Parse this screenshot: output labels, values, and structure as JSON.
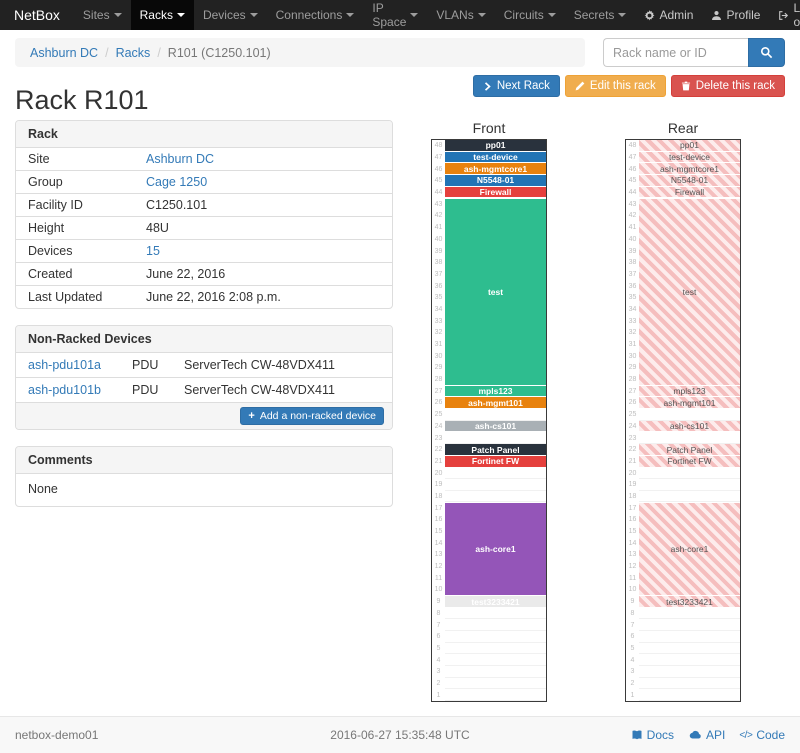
{
  "navbar": {
    "brand": "NetBox",
    "items": [
      {
        "label": "Sites",
        "active": false
      },
      {
        "label": "Racks",
        "active": true
      },
      {
        "label": "Devices",
        "active": false
      },
      {
        "label": "Connections",
        "active": false
      },
      {
        "label": "IP Space",
        "active": false
      },
      {
        "label": "VLANs",
        "active": false
      },
      {
        "label": "Circuits",
        "active": false
      },
      {
        "label": "Secrets",
        "active": false
      }
    ],
    "right": [
      {
        "label": "Admin",
        "icon": "gear"
      },
      {
        "label": "Profile",
        "icon": "user"
      },
      {
        "label": "Log out",
        "icon": "logout"
      }
    ]
  },
  "breadcrumb": {
    "items": [
      "Ashburn DC",
      "Racks",
      "R101 (C1250.101)"
    ]
  },
  "search": {
    "placeholder": "Rack name or ID",
    "icon": "search"
  },
  "page": {
    "title": "Rack R101",
    "buttons": [
      {
        "label": "Next Rack",
        "icon": "chevron-right",
        "style": "primary"
      },
      {
        "label": "Edit this rack",
        "icon": "pencil",
        "style": "warning"
      },
      {
        "label": "Delete this rack",
        "icon": "trash",
        "style": "danger"
      }
    ]
  },
  "rack_panel": {
    "title": "Rack",
    "rows": [
      {
        "label": "Site",
        "value": "Ashburn DC",
        "link": true
      },
      {
        "label": "Group",
        "value": "Cage 1250",
        "link": true
      },
      {
        "label": "Facility ID",
        "value": "C1250.101",
        "link": false
      },
      {
        "label": "Height",
        "value": "48U",
        "link": false
      },
      {
        "label": "Devices",
        "value": "15",
        "link": true
      },
      {
        "label": "Created",
        "value": "June 22, 2016",
        "link": false
      },
      {
        "label": "Last Updated",
        "value": "June 22, 2016 2:08 p.m.",
        "link": false
      }
    ]
  },
  "nonracked_panel": {
    "title": "Non-Racked Devices",
    "devices": [
      {
        "name": "ash-pdu101a",
        "role": "PDU",
        "type": "ServerTech CW-48VDX411"
      },
      {
        "name": "ash-pdu101b",
        "role": "PDU",
        "type": "ServerTech CW-48VDX411"
      }
    ],
    "add_button": {
      "label": "Add a non-racked device",
      "icon": "plus"
    }
  },
  "comments_panel": {
    "title": "Comments",
    "body": "None"
  },
  "elevations": {
    "front_title": "Front",
    "rear_title": "Rear",
    "units_total": 48,
    "colors": {
      "rear_hatch_light": "#fdecec",
      "rear_hatch_dark": "#f5bebe"
    },
    "devices": [
      {
        "name": "pp01",
        "top_u": 48,
        "height": 1,
        "color": "#29323d"
      },
      {
        "name": "test-device",
        "top_u": 47,
        "height": 1,
        "color": "#2274b5"
      },
      {
        "name": "ash-mgmtcore1",
        "top_u": 46,
        "height": 1,
        "color": "#e8820e"
      },
      {
        "name": "N5548-01",
        "top_u": 45,
        "height": 1,
        "color": "#2274b5"
      },
      {
        "name": "Firewall",
        "top_u": 44,
        "height": 1,
        "color": "#e5403d"
      },
      {
        "name": "test",
        "top_u": 43,
        "height": 16,
        "color": "#2ebd8f"
      },
      {
        "name": "mpls123",
        "top_u": 27,
        "height": 1,
        "color": "#2ebd8f"
      },
      {
        "name": "ash-mgmt101",
        "top_u": 26,
        "height": 1,
        "color": "#e8820e"
      },
      {
        "name": "ash-cs101",
        "top_u": 24,
        "height": 1,
        "color": "#a9b0b5"
      },
      {
        "name": "Patch Panel",
        "top_u": 22,
        "height": 1,
        "color": "#29323d"
      },
      {
        "name": "Fortinet FW",
        "top_u": 21,
        "height": 1,
        "color": "#e5403d"
      },
      {
        "name": "ash-core1",
        "top_u": 17,
        "height": 8,
        "color": "#9455b8"
      },
      {
        "name": "test3233421",
        "top_u": 9,
        "height": 1,
        "color": "#eaeaea",
        "text_color": "#ffffff"
      }
    ]
  },
  "footer": {
    "hostname": "netbox-demo01",
    "timestamp": "2016-06-27 15:35:48 UTC",
    "links": [
      {
        "label": "Docs",
        "icon": "book"
      },
      {
        "label": "API",
        "icon": "cloud"
      },
      {
        "label": "Code",
        "icon": "code"
      }
    ]
  }
}
